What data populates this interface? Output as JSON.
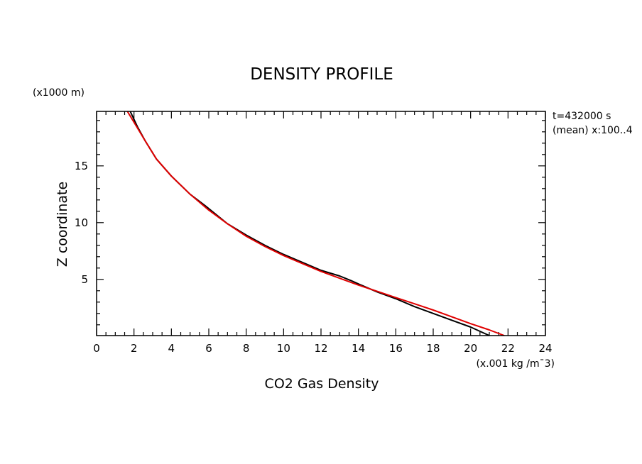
{
  "chart_data": {
    "type": "line",
    "title": "DENSITY PROFILE",
    "xlabel": "CO2 Gas Density",
    "xunits": "(x.001 kg /m¯3)",
    "ylabel": "Z coordinate",
    "yunits": "(x1000 m)",
    "annotation_time": "t=432000 s",
    "annotation_mean": "(mean) x:100..4",
    "xlim": [
      0,
      24
    ],
    "ylim": [
      0.05,
      19.8
    ],
    "xticks": [
      0,
      2,
      4,
      6,
      8,
      10,
      12,
      14,
      16,
      18,
      20,
      22,
      24
    ],
    "yticks": [
      5,
      10,
      15
    ],
    "grid": false,
    "series": [
      {
        "color": "#000000",
        "points": [
          [
            1.8,
            19.8
          ],
          [
            2.2,
            18.4
          ],
          [
            2.6,
            17.2
          ],
          [
            3.2,
            15.6
          ],
          [
            4.0,
            14.1
          ],
          [
            5.0,
            12.5
          ],
          [
            5.8,
            11.5
          ],
          [
            7.0,
            9.9
          ],
          [
            8.0,
            8.9
          ],
          [
            9.0,
            8.0
          ],
          [
            10.0,
            7.2
          ],
          [
            11.0,
            6.5
          ],
          [
            12.0,
            5.8
          ],
          [
            13.0,
            5.3
          ],
          [
            13.6,
            4.9
          ],
          [
            14.0,
            4.6
          ],
          [
            15.0,
            3.9
          ],
          [
            16.0,
            3.3
          ],
          [
            17.0,
            2.6
          ],
          [
            18.0,
            2.0
          ],
          [
            19.0,
            1.4
          ],
          [
            20.0,
            0.8
          ],
          [
            21.0,
            0.05
          ]
        ]
      },
      {
        "color": "#e00000",
        "points": [
          [
            1.65,
            19.8
          ],
          [
            2.2,
            18.3
          ],
          [
            2.6,
            17.2
          ],
          [
            3.2,
            15.6
          ],
          [
            4.0,
            14.1
          ],
          [
            5.0,
            12.5
          ],
          [
            6.0,
            11.1
          ],
          [
            7.0,
            9.9
          ],
          [
            8.0,
            8.8
          ],
          [
            9.0,
            7.9
          ],
          [
            10.0,
            7.1
          ],
          [
            11.0,
            6.4
          ],
          [
            12.0,
            5.7
          ],
          [
            13.0,
            5.1
          ],
          [
            14.0,
            4.5
          ],
          [
            15.0,
            3.95
          ],
          [
            16.0,
            3.4
          ],
          [
            17.0,
            2.85
          ],
          [
            18.0,
            2.3
          ],
          [
            19.0,
            1.7
          ],
          [
            20.0,
            1.1
          ],
          [
            21.0,
            0.55
          ],
          [
            21.8,
            0.05
          ]
        ]
      }
    ]
  }
}
